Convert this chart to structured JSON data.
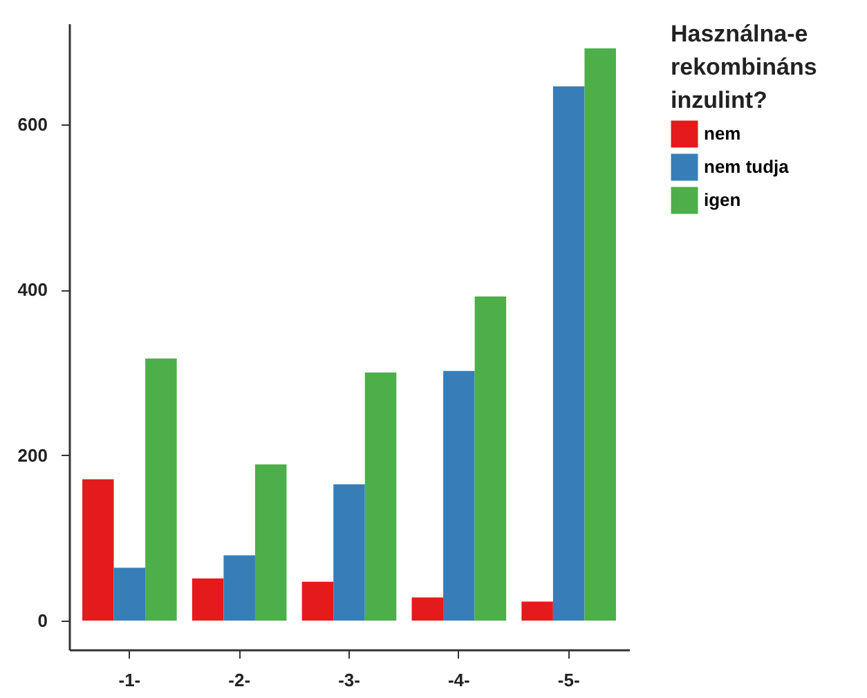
{
  "chart_data": {
    "type": "bar",
    "categories": [
      "-1-",
      "-2-",
      "-3-",
      "-4-",
      "-5-"
    ],
    "series": [
      {
        "name": "nem",
        "color": "#e41a1c",
        "values": [
          171,
          51,
          47,
          28,
          23
        ]
      },
      {
        "name": "nem tudja",
        "color": "#377eb8",
        "values": [
          64,
          79,
          165,
          302,
          646
        ]
      },
      {
        "name": "igen",
        "color": "#4daf4a",
        "values": [
          317,
          189,
          300,
          392,
          692
        ]
      }
    ],
    "legend_title": "Használna-e rekombináns inzulint?",
    "legend": "right",
    "grid": false,
    "ylim": [
      -35,
      722
    ],
    "yticks": [
      0,
      200,
      400,
      600
    ]
  }
}
